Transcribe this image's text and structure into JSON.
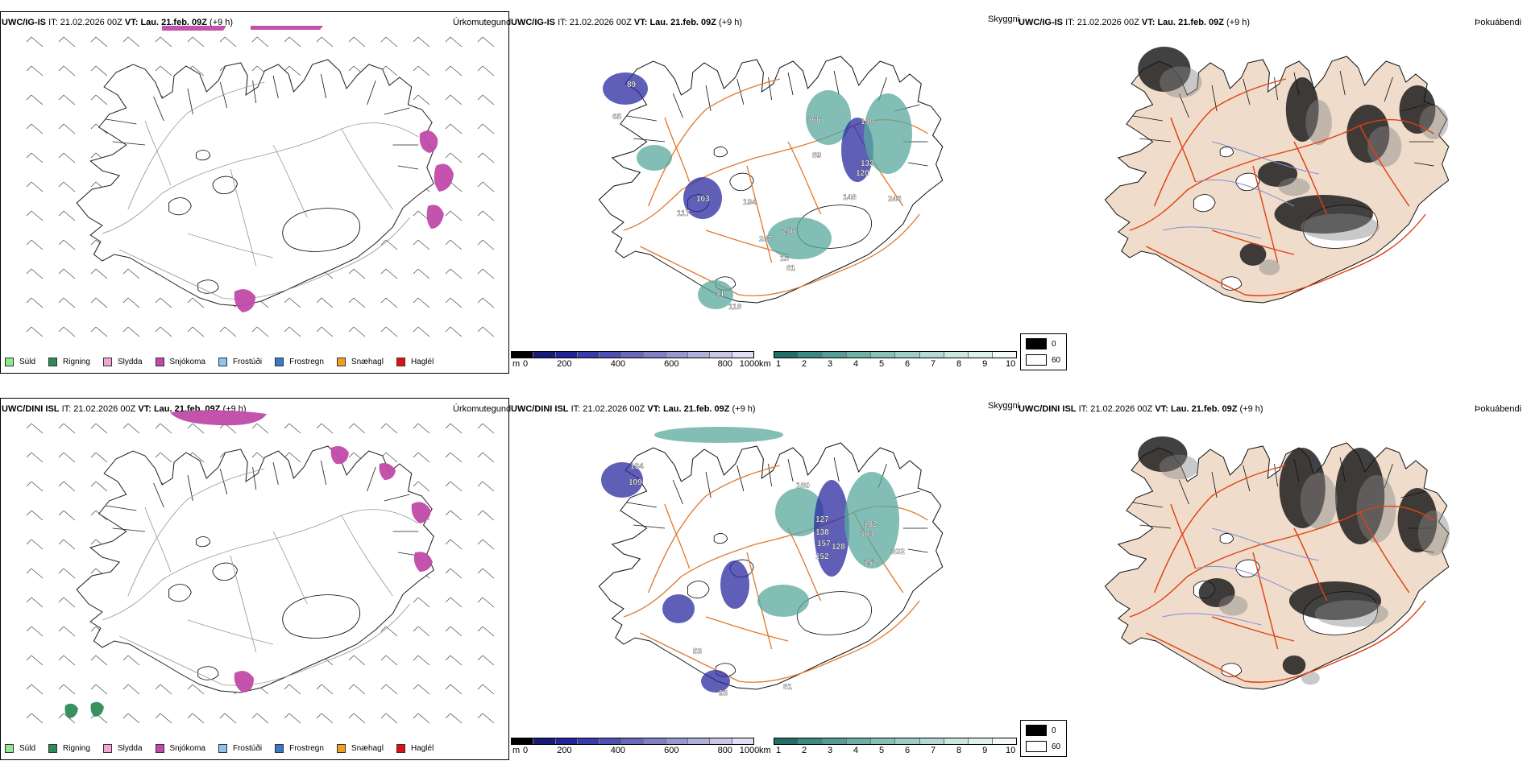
{
  "rows": [
    {
      "model": "UWC/IG-IS",
      "it_label": "IT:",
      "it_value": "21.02.2026 00Z",
      "vt_label": "VT:",
      "vt_value": "Lau. 21.feb. 09Z",
      "offset": "(+9 h)",
      "panel_titles": [
        "Úrkomutegund",
        "Skyggni",
        "Þokuábendi"
      ],
      "skyggni_labels": [
        "89",
        "65",
        "103",
        "117",
        "194",
        "166",
        "190",
        "89",
        "132",
        "120",
        "148",
        "246",
        "256",
        "287",
        "15",
        "81",
        "41",
        "118"
      ]
    },
    {
      "model": "UWC/DINI ISL",
      "it_label": "IT:",
      "it_value": "21.02.2026 00Z",
      "vt_label": "VT:",
      "vt_value": "Lau. 21.feb. 09Z",
      "offset": "(+9 h)",
      "panel_titles": [
        "Úrkomutegund",
        "Skyggni",
        "Þokuábendi"
      ],
      "skyggni_labels": [
        "134",
        "109",
        "180",
        "127",
        "182",
        "138",
        "157",
        "128",
        "152",
        "164",
        "202",
        "152",
        "53",
        "81",
        "93"
      ]
    }
  ],
  "precip_legend": [
    {
      "label": "Súld",
      "color": "#8ee88e"
    },
    {
      "label": "Rigning",
      "color": "#2e8b57"
    },
    {
      "label": "Slydda",
      "color": "#f2a6d6"
    },
    {
      "label": "Snjókoma",
      "color": "#c04aa8"
    },
    {
      "label": "Frostúði",
      "color": "#8cc4f0"
    },
    {
      "label": "Frostregn",
      "color": "#3a78c8"
    },
    {
      "label": "Snæhagl",
      "color": "#f0a020"
    },
    {
      "label": "Haglél",
      "color": "#e01010"
    }
  ],
  "height_scale": {
    "unit": "m",
    "ticks": [
      "0",
      "200",
      "400",
      "600",
      "800",
      "1000"
    ],
    "colors": [
      "#000000",
      "#1a1a7a",
      "#24249a",
      "#3a3aaa",
      "#5050b4",
      "#6868bc",
      "#8080c6",
      "#9898d0",
      "#b0b0dc",
      "#c8c8e6",
      "#e0e0f2"
    ]
  },
  "vis_scale": {
    "unit": "km",
    "ticks": [
      "1",
      "2",
      "3",
      "4",
      "5",
      "6",
      "7",
      "8",
      "9",
      "10"
    ],
    "colors": [
      "#1f6f66",
      "#3a8a80",
      "#549d94",
      "#6db0a8",
      "#86c0b9",
      "#9ecdc7",
      "#b5d9d4",
      "#cbe5e1",
      "#e0f0ed",
      "#f4faf9"
    ]
  },
  "fog_scale": [
    {
      "label": "0",
      "color": "#000000"
    },
    {
      "label": "60",
      "color": "#ffffff"
    }
  ],
  "colors": {
    "snow": "#c04aa8",
    "rain": "#2e8b57",
    "roads": "#e07a30",
    "vis_low": "#2a2aa0",
    "vis_teal": "#5aa89e",
    "fog_land": "#f0dccb",
    "fog_roads": "#e04010",
    "rivers": "#7f8fd8"
  }
}
